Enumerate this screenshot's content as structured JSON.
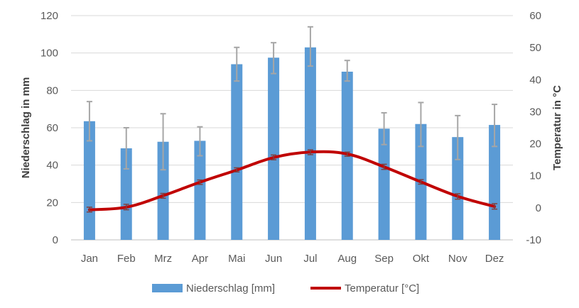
{
  "chart_data": {
    "type": "bar",
    "categories": [
      "Jan",
      "Feb",
      "Mrz",
      "Apr",
      "Mai",
      "Jun",
      "Jul",
      "Aug",
      "Sep",
      "Okt",
      "Nov",
      "Dez"
    ],
    "series": [
      {
        "name": "Niederschlag [mm]",
        "type": "bar",
        "axis": "left",
        "color": "#5b9bd5",
        "values": [
          63.5,
          49,
          52.5,
          53,
          94,
          97.5,
          103,
          90,
          59.5,
          62,
          55,
          61.5
        ],
        "error_low": [
          53,
          38,
          37.5,
          45,
          85,
          89,
          93,
          85,
          51,
          50,
          43,
          50
        ],
        "error_high": [
          74,
          60,
          67.5,
          60.5,
          103,
          105.5,
          114,
          96,
          68,
          73.5,
          66.5,
          72.5
        ]
      },
      {
        "name": "Temperatur [°C]",
        "type": "line",
        "axis": "right",
        "color": "#c00000",
        "values": [
          -0.6,
          0.2,
          3.8,
          8.0,
          11.8,
          15.7,
          17.4,
          16.8,
          12.8,
          8.1,
          3.6,
          0.4
        ],
        "error_low": [
          -1.3,
          -0.6,
          3.0,
          7.3,
          11.2,
          15.0,
          16.6,
          16.1,
          12.0,
          7.4,
          2.7,
          -0.4
        ],
        "error_high": [
          0.2,
          1.1,
          4.5,
          8.7,
          12.5,
          16.5,
          18.1,
          17.4,
          13.6,
          8.8,
          4.4,
          1.3
        ]
      }
    ],
    "ylabel": "Niederschlag in mm",
    "y2label": "Temperatur in °C",
    "ylim": [
      0,
      120
    ],
    "y2lim": [
      -10,
      60
    ],
    "yticks": [
      "0",
      "20",
      "40",
      "60",
      "80",
      "100",
      "120"
    ],
    "y2ticks": [
      "-10",
      "0",
      "10",
      "20",
      "30",
      "40",
      "50",
      "60"
    ],
    "grid": true,
    "error_bar_color": "#a6a6a6",
    "legend_position": "bottom"
  }
}
